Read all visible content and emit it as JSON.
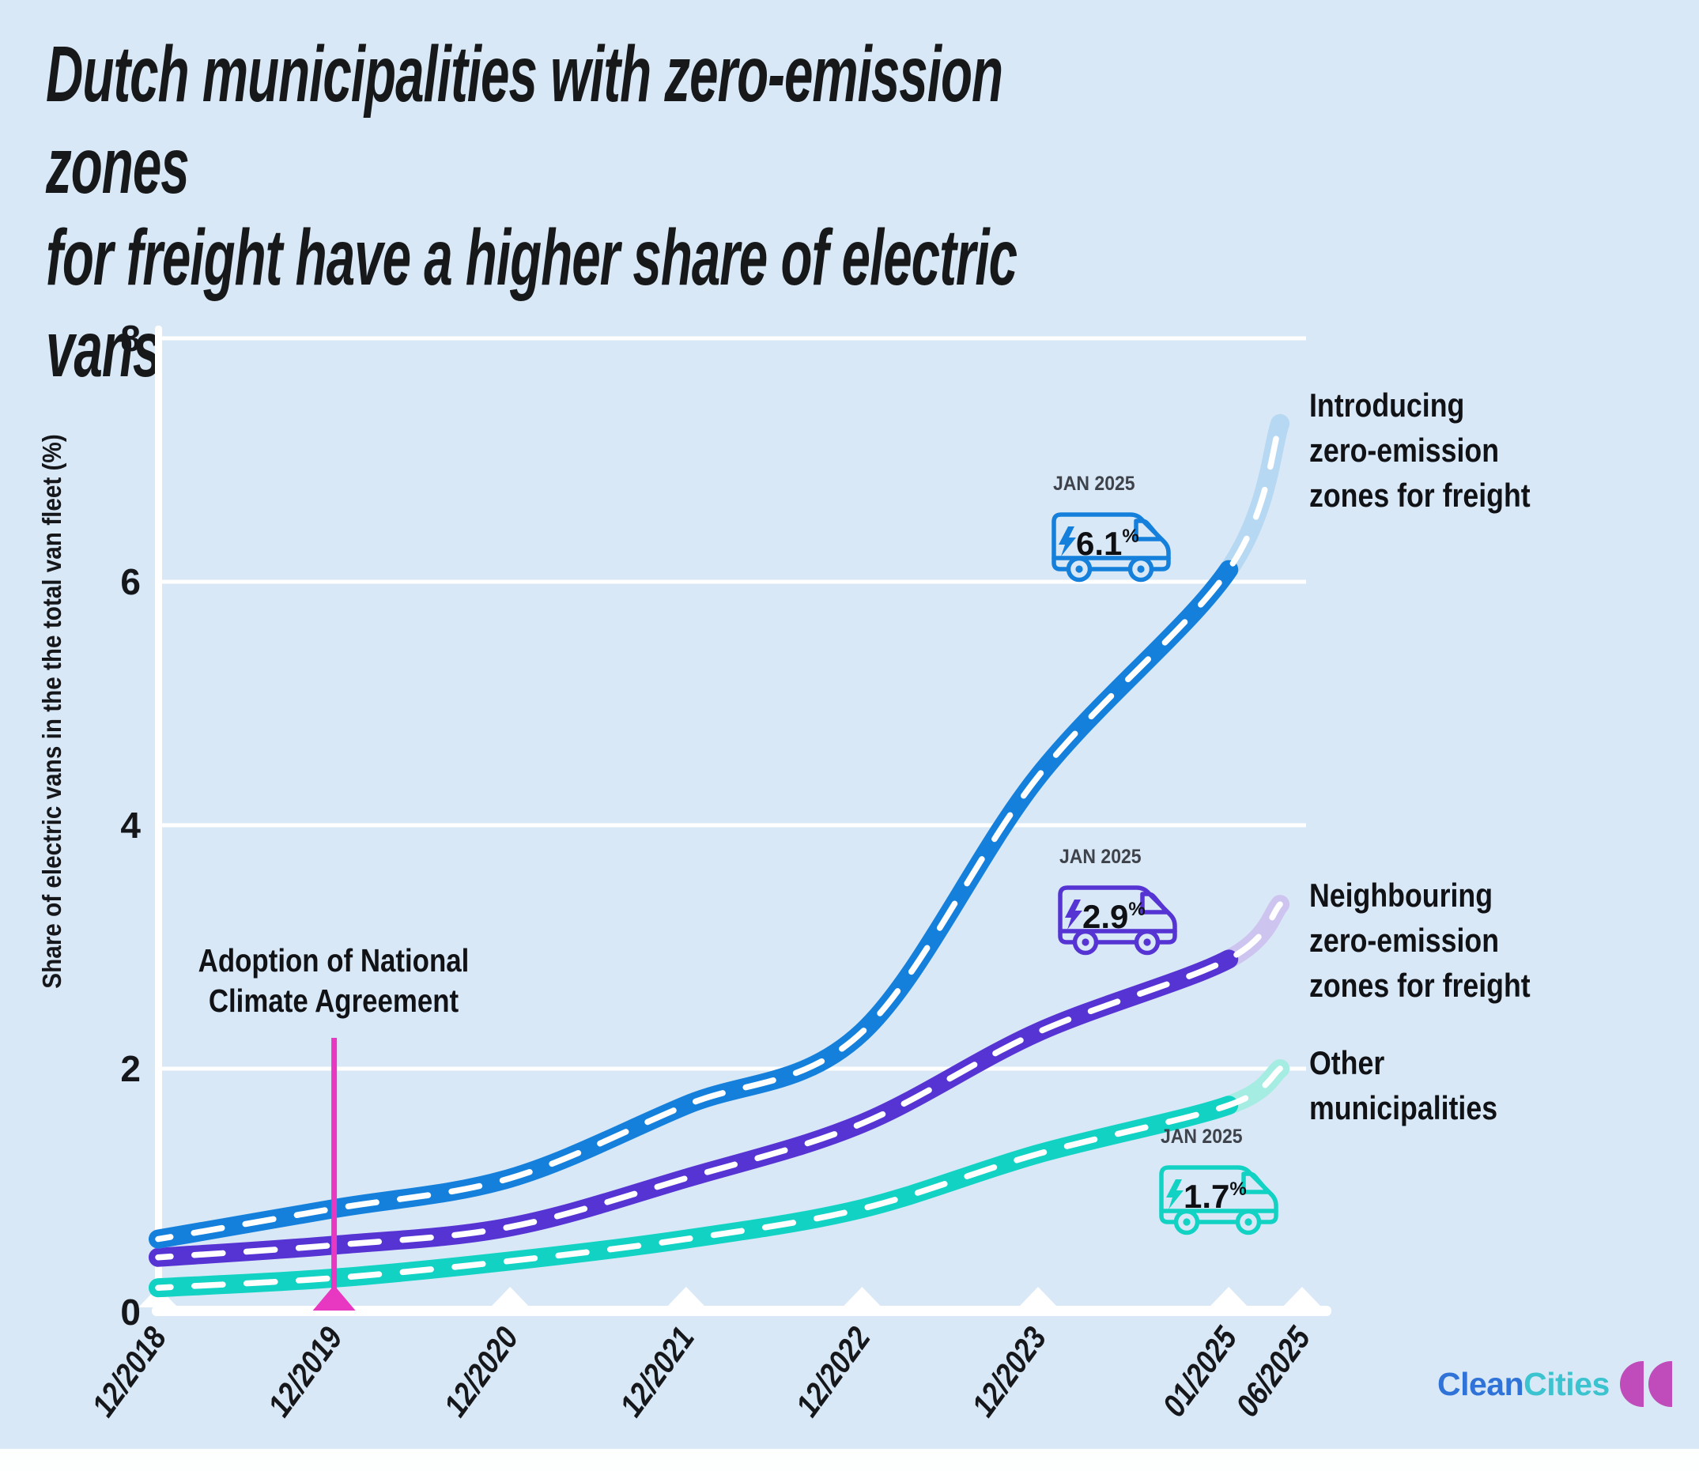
{
  "page": {
    "title": "Dutch municipalities with zero-emission zones\nfor freight have a higher share of electric vans",
    "background_color": "#d9e8f6"
  },
  "chart_data": {
    "type": "line",
    "title": "Dutch municipalities with zero-emission zones for freight have a higher share of electric vans",
    "ylabel": "Share of electric vans in the the total van fleet (%)",
    "ylim": [
      0,
      8
    ],
    "yticks": [
      0,
      2,
      4,
      6,
      8
    ],
    "grid": true,
    "legend_position": "right",
    "x_tick_labels": [
      "12/2018",
      "12/2019",
      "12/2020",
      "12/2021",
      "12/2022",
      "12/2023",
      "01/2025",
      "06/2025"
    ],
    "x_tick_months": [
      0,
      12,
      24,
      36,
      48,
      60,
      73,
      78
    ],
    "sample_months": [
      0,
      12,
      24,
      36,
      48,
      60,
      73
    ],
    "series": [
      {
        "name": "Introducing zero-emission zones for freight",
        "legend_label": "Introducing\nzero-emission\nzones for freight",
        "color": "#1480dc",
        "projection_color": "#b6d8f2",
        "values": [
          0.6,
          0.85,
          1.1,
          1.7,
          2.3,
          4.4,
          6.1
        ],
        "projection": {
          "month": 78,
          "label": "06/2025",
          "value": 7.3
        },
        "callout": {
          "date": "JAN 2025",
          "value": "6.1",
          "unit": "%"
        }
      },
      {
        "name": "Neighbouring zero-emission zones for freight",
        "legend_label": "Neighbouring\nzero-emission\nzones for freight",
        "color": "#5634d4",
        "projection_color": "#cdc4ef",
        "values": [
          0.45,
          0.55,
          0.7,
          1.1,
          1.55,
          2.3,
          2.9
        ],
        "projection": {
          "month": 78,
          "label": "06/2025",
          "value": 3.35
        },
        "callout": {
          "date": "JAN 2025",
          "value": "2.9",
          "unit": "%"
        }
      },
      {
        "name": "Other municipalities",
        "legend_label": "Other\nmunicipalities",
        "color": "#12d2c4",
        "projection_color": "#a5ece3",
        "values": [
          0.2,
          0.28,
          0.42,
          0.6,
          0.85,
          1.3,
          1.7
        ],
        "projection": {
          "month": 78,
          "label": "06/2025",
          "value": 2.0
        },
        "callout": {
          "date": "JAN 2025",
          "value": "1.7",
          "unit": "%"
        }
      }
    ],
    "event": {
      "label": "Adoption of National\nClimate Agreement",
      "x_label": "12/2019",
      "x_month": 12,
      "color": "#e837c0"
    }
  },
  "brand": {
    "parts": [
      "Clean",
      "Cities"
    ],
    "part_colors": [
      "#2f72d8",
      "#3bc3cf"
    ],
    "mark_color": "#bf4cba"
  }
}
